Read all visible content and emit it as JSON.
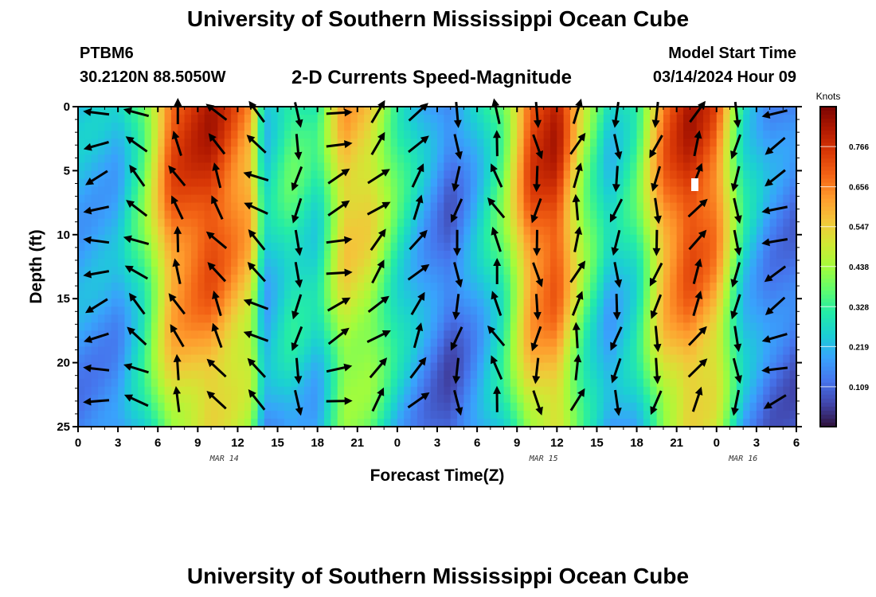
{
  "page": {
    "title": "University of Southern Mississippi Ocean Cube",
    "footer_title": "University of Southern Mississippi Ocean Cube",
    "station": "PTBM6",
    "coords": "30.2120N  88.5050W",
    "chart_title": "2-D Currents Speed-Magnitude",
    "model_start_label": "Model Start Time",
    "model_start_value": "03/14/2024 Hour 09"
  },
  "chart_data": {
    "type": "heatmap",
    "title": "2-D Currents Speed-Magnitude",
    "xlabel": "Forecast Time(Z)",
    "ylabel": "Depth (ft)",
    "x_tick_labels": [
      "0",
      "3",
      "6",
      "9",
      "12",
      "15",
      "18",
      "21",
      "0",
      "3",
      "6",
      "9",
      "12",
      "15",
      "18",
      "21",
      "0",
      "3",
      "6"
    ],
    "x_range_hours": [
      0,
      54
    ],
    "date_labels": [
      {
        "label": "MAR 14",
        "hour": 11
      },
      {
        "label": "MAR 15",
        "hour": 35
      },
      {
        "label": "MAR 16",
        "hour": 50
      }
    ],
    "y_tick_labels": [
      "0",
      "5",
      "10",
      "15",
      "20",
      "25"
    ],
    "y_range_ft": [
      0,
      25
    ],
    "y_inverted": true,
    "colorbar": {
      "title": "Knots",
      "ticks": [
        "0.766",
        "0.656",
        "0.547",
        "0.438",
        "0.328",
        "0.219",
        "0.109"
      ],
      "tick_values": [
        0.766,
        0.656,
        0.547,
        0.438,
        0.328,
        0.219,
        0.109
      ],
      "range": [
        0,
        0.875
      ],
      "colormap": [
        "#30123b",
        "#4145ab",
        "#4675ed",
        "#39a2fc",
        "#1bcfd4",
        "#24eca6",
        "#61fc6c",
        "#a4fc3b",
        "#d1e834",
        "#f3c63a",
        "#fe9b2d",
        "#f36315",
        "#d93806",
        "#b11901",
        "#7a0402"
      ]
    },
    "speed_profile_by_hour": [
      [
        0,
        0.22
      ],
      [
        3,
        0.22
      ],
      [
        5,
        0.4
      ],
      [
        7,
        0.72
      ],
      [
        10,
        0.8
      ],
      [
        13,
        0.62
      ],
      [
        14,
        0.25
      ],
      [
        16,
        0.36
      ],
      [
        18,
        0.3
      ],
      [
        20,
        0.6
      ],
      [
        22,
        0.55
      ],
      [
        24,
        0.35
      ],
      [
        26,
        0.22
      ],
      [
        28,
        0.12
      ],
      [
        30,
        0.24
      ],
      [
        32,
        0.4
      ],
      [
        34,
        0.74
      ],
      [
        36,
        0.8
      ],
      [
        38,
        0.45
      ],
      [
        40,
        0.25
      ],
      [
        42,
        0.35
      ],
      [
        44,
        0.68
      ],
      [
        46,
        0.8
      ],
      [
        48,
        0.7
      ],
      [
        50,
        0.3
      ],
      [
        52,
        0.18
      ],
      [
        54,
        0.14
      ]
    ],
    "vector_directions_deg_by_hour": [
      [
        0,
        250
      ],
      [
        3,
        265
      ],
      [
        6,
        345
      ],
      [
        9,
        335
      ],
      [
        12,
        320
      ],
      [
        15,
        290
      ],
      [
        18,
        80
      ],
      [
        21,
        60
      ],
      [
        24,
        30
      ],
      [
        27,
        40
      ],
      [
        30,
        330
      ],
      [
        33,
        350
      ],
      [
        36,
        10
      ],
      [
        39,
        20
      ],
      [
        42,
        355
      ],
      [
        45,
        25
      ],
      [
        48,
        35
      ],
      [
        51,
        330
      ],
      [
        54,
        160
      ]
    ]
  }
}
